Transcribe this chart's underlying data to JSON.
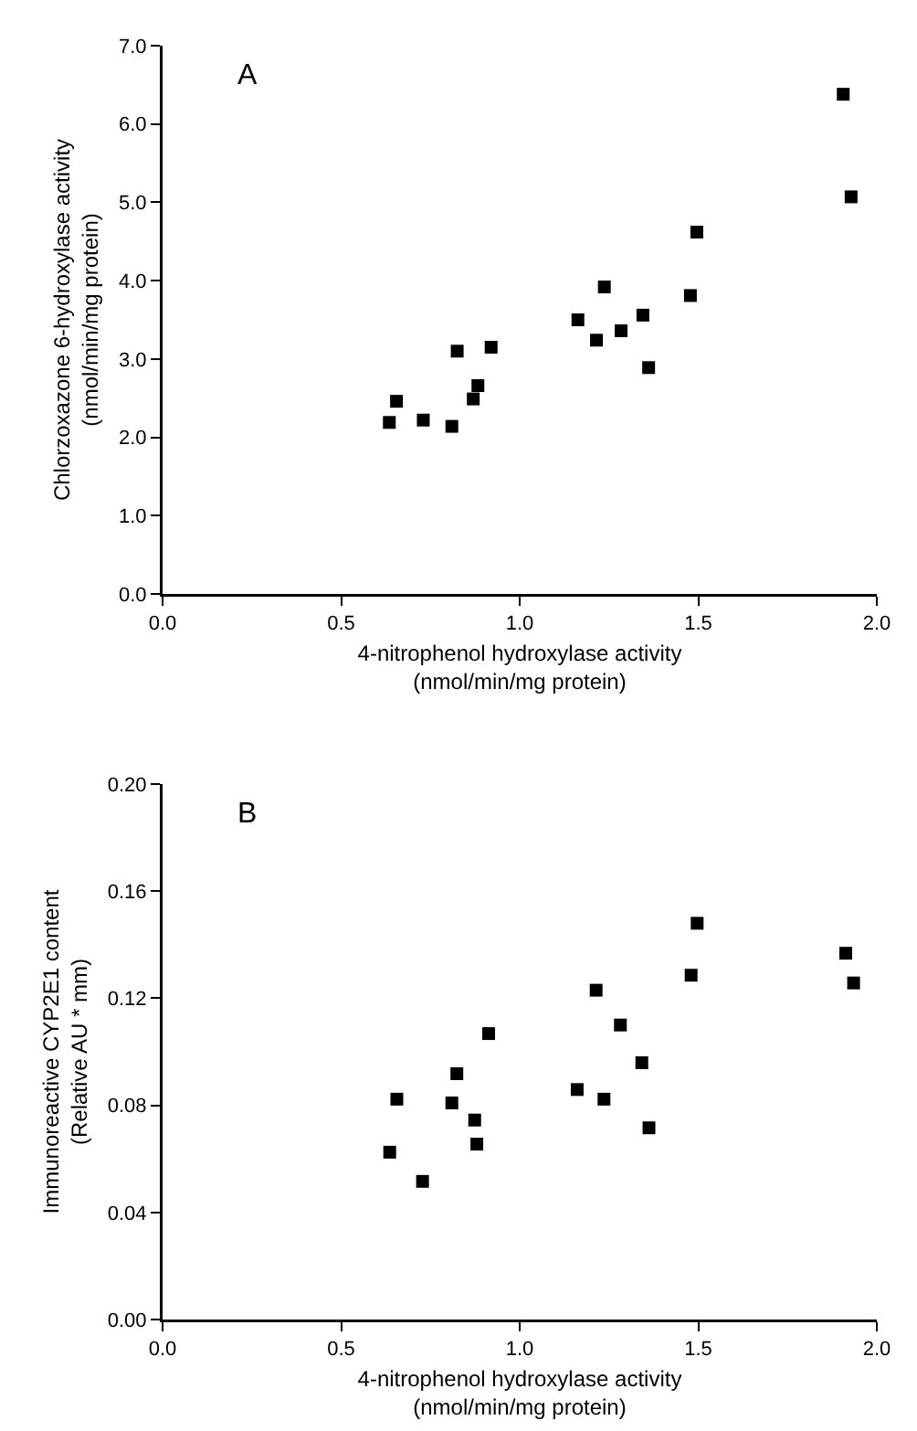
{
  "chart_data": [
    {
      "type": "scatter",
      "title": "A",
      "xlabel": "4-nitrophenol hydroxylase activity\n(nmol/min/mg protein)",
      "ylabel": "Chlorzoxazone 6-hydroxylase activity\n(nmol/min/mg protein)",
      "marker": "square",
      "grid": false,
      "x": [
        0.635,
        0.655,
        0.73,
        0.81,
        0.825,
        0.87,
        0.883,
        0.92,
        1.163,
        1.215,
        1.237,
        1.284,
        1.345,
        1.361,
        1.478,
        1.496,
        1.906,
        1.928
      ],
      "series": [
        {
          "color": "#000000",
          "values": [
            2.19,
            2.46,
            2.22,
            2.14,
            3.1,
            2.49,
            2.66,
            3.15,
            3.5,
            3.24,
            3.92,
            3.36,
            3.56,
            2.89,
            3.81,
            4.62,
            6.38,
            5.07
          ]
        }
      ],
      "xlim": [
        0,
        2
      ],
      "xticks": [
        {
          "value": 0,
          "label": "0.0"
        },
        {
          "value": 0.5,
          "label": "0.5"
        },
        {
          "value": 1,
          "label": "1.0"
        },
        {
          "value": 1.5,
          "label": "1.5"
        },
        {
          "value": 2,
          "label": "2.0"
        }
      ],
      "ylim": [
        0,
        7
      ],
      "yticks": [
        {
          "value": 0,
          "label": "0.0"
        },
        {
          "value": 1,
          "label": "1.0"
        },
        {
          "value": 2,
          "label": "2.0"
        },
        {
          "value": 3,
          "label": "3.0"
        },
        {
          "value": 4,
          "label": "4.0"
        },
        {
          "value": 5,
          "label": "5.0"
        },
        {
          "value": 6,
          "label": "6.0"
        },
        {
          "value": 7,
          "label": "7.0"
        }
      ]
    },
    {
      "type": "scatter",
      "title": "B",
      "xlabel": "4-nitrophenol hydroxylase activity\n(nmol/min/mg protein)",
      "ylabel": "Immunoreactive CYP2E1 content\n(Relative AU * mm)",
      "marker": "square",
      "grid": false,
      "x": [
        0.636,
        0.656,
        0.728,
        0.81,
        0.824,
        0.874,
        0.88,
        0.913,
        1.161,
        1.214,
        1.236,
        1.282,
        1.342,
        1.362,
        1.48,
        1.497,
        1.913,
        1.935
      ],
      "series": [
        {
          "color": "#000000",
          "values": [
            0.0625,
            0.0823,
            0.0516,
            0.0809,
            0.0918,
            0.0745,
            0.0655,
            0.1068,
            0.0859,
            0.123,
            0.0823,
            0.11,
            0.0959,
            0.0716,
            0.1286,
            0.148,
            0.1368,
            0.1257
          ]
        }
      ],
      "xlim": [
        0,
        2
      ],
      "xticks": [
        {
          "value": 0,
          "label": "0.0"
        },
        {
          "value": 0.5,
          "label": "0.5"
        },
        {
          "value": 1,
          "label": "1.0"
        },
        {
          "value": 1.5,
          "label": "1.5"
        },
        {
          "value": 2,
          "label": "2.0"
        }
      ],
      "ylim": [
        0,
        0.2
      ],
      "yticks": [
        {
          "value": 0,
          "label": "0.00"
        },
        {
          "value": 0.04,
          "label": "0.04"
        },
        {
          "value": 0.08,
          "label": "0.08"
        },
        {
          "value": 0.12,
          "label": "0.12"
        },
        {
          "value": 0.16,
          "label": "0.16"
        },
        {
          "value": 0.2,
          "label": "0.20"
        }
      ]
    }
  ]
}
